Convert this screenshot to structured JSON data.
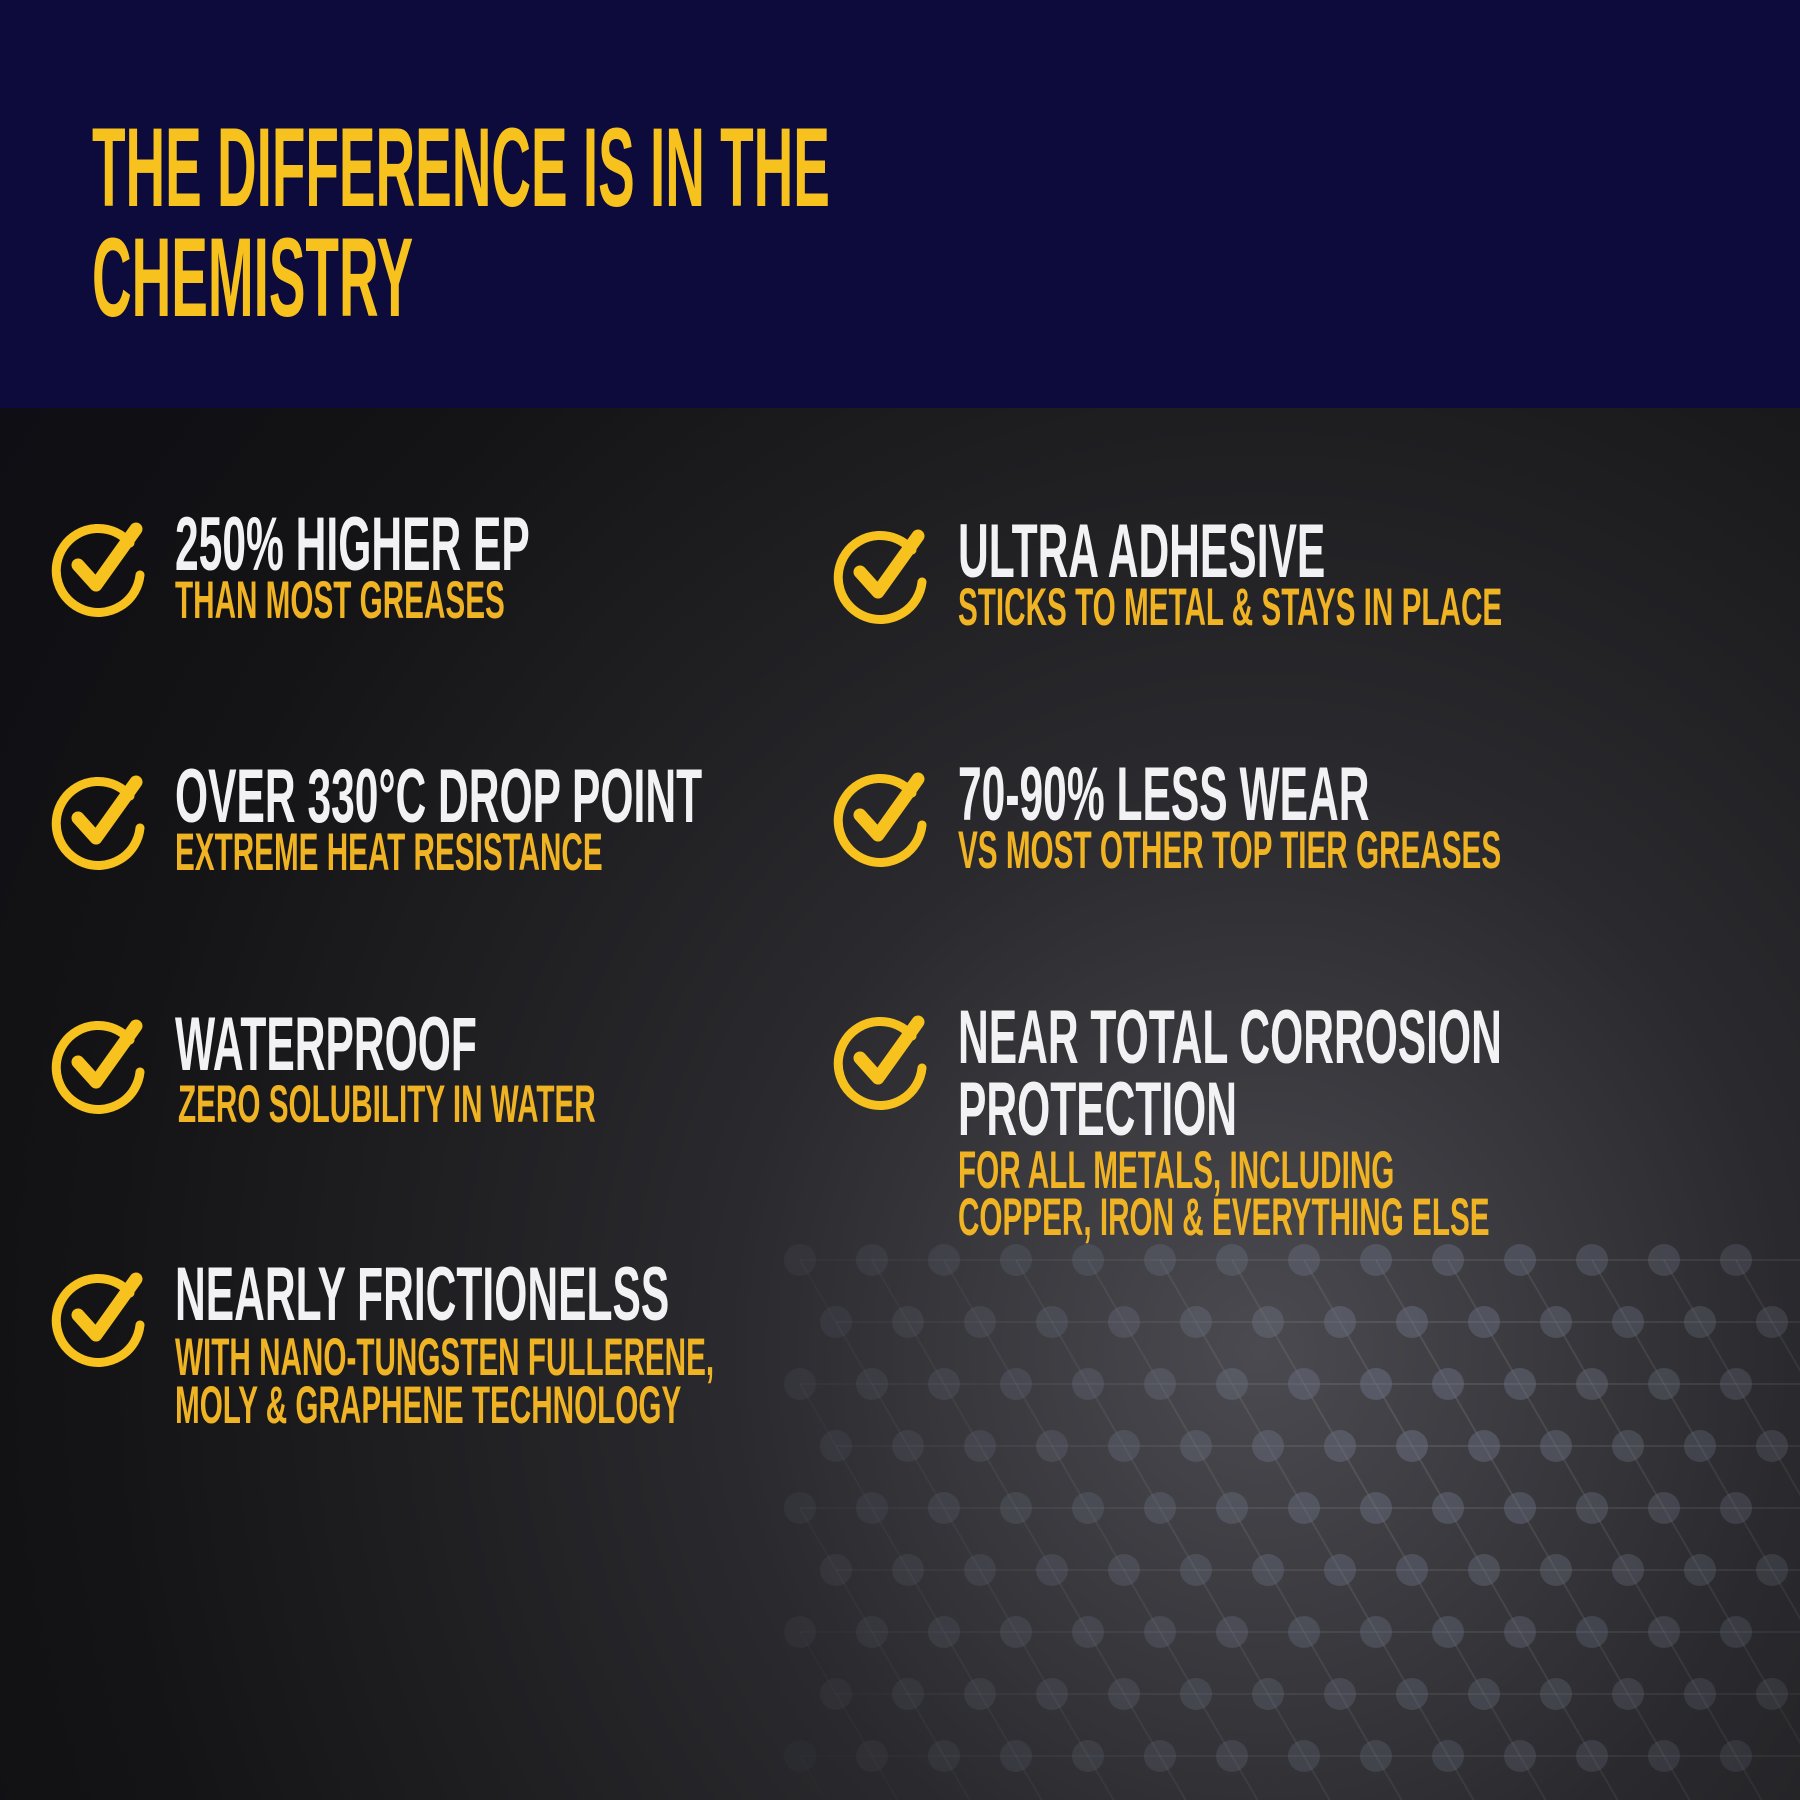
{
  "header": {
    "title_lines": [
      "THE DIFFERENCE IS IN THE",
      "CHEMISTRY"
    ],
    "background": "#0c0b3c",
    "accent": "#f7c21e"
  },
  "features": [
    {
      "title": [
        "250% HIGHER EP"
      ],
      "subtitle": [
        "THAN MOST GREASES"
      ],
      "icon": "check-circle-icon"
    },
    {
      "title": [
        "ULTRA ADHESIVE"
      ],
      "subtitle": [
        "STICKS TO METAL & STAYS IN PLACE"
      ],
      "icon": "check-circle-icon"
    },
    {
      "title": [
        "OVER 330°C DROP POINT"
      ],
      "subtitle": [
        "EXTREME HEAT RESISTANCE"
      ],
      "icon": "check-circle-icon"
    },
    {
      "title": [
        "70-90% LESS WEAR"
      ],
      "subtitle": [
        "VS MOST OTHER TOP TIER GREASES"
      ],
      "icon": "check-circle-icon"
    },
    {
      "title": [
        "WATERPROOF"
      ],
      "subtitle": [
        "ZERO SOLUBILITY IN WATER"
      ],
      "icon": "check-circle-icon"
    },
    {
      "title": [
        "NEAR TOTAL CORROSION",
        "PROTECTION"
      ],
      "subtitle": [
        "FOR ALL METALS, INCLUDING",
        "COPPER, IRON & EVERYTHING ELSE"
      ],
      "icon": "check-circle-icon"
    },
    {
      "title": [
        "NEARLY FRICTIONELSS"
      ],
      "subtitle": [
        "WITH NANO-TUNGSTEN FULLERENE,",
        "MOLY & GRAPHENE TECHNOLOGY"
      ],
      "icon": "check-circle-icon"
    }
  ]
}
